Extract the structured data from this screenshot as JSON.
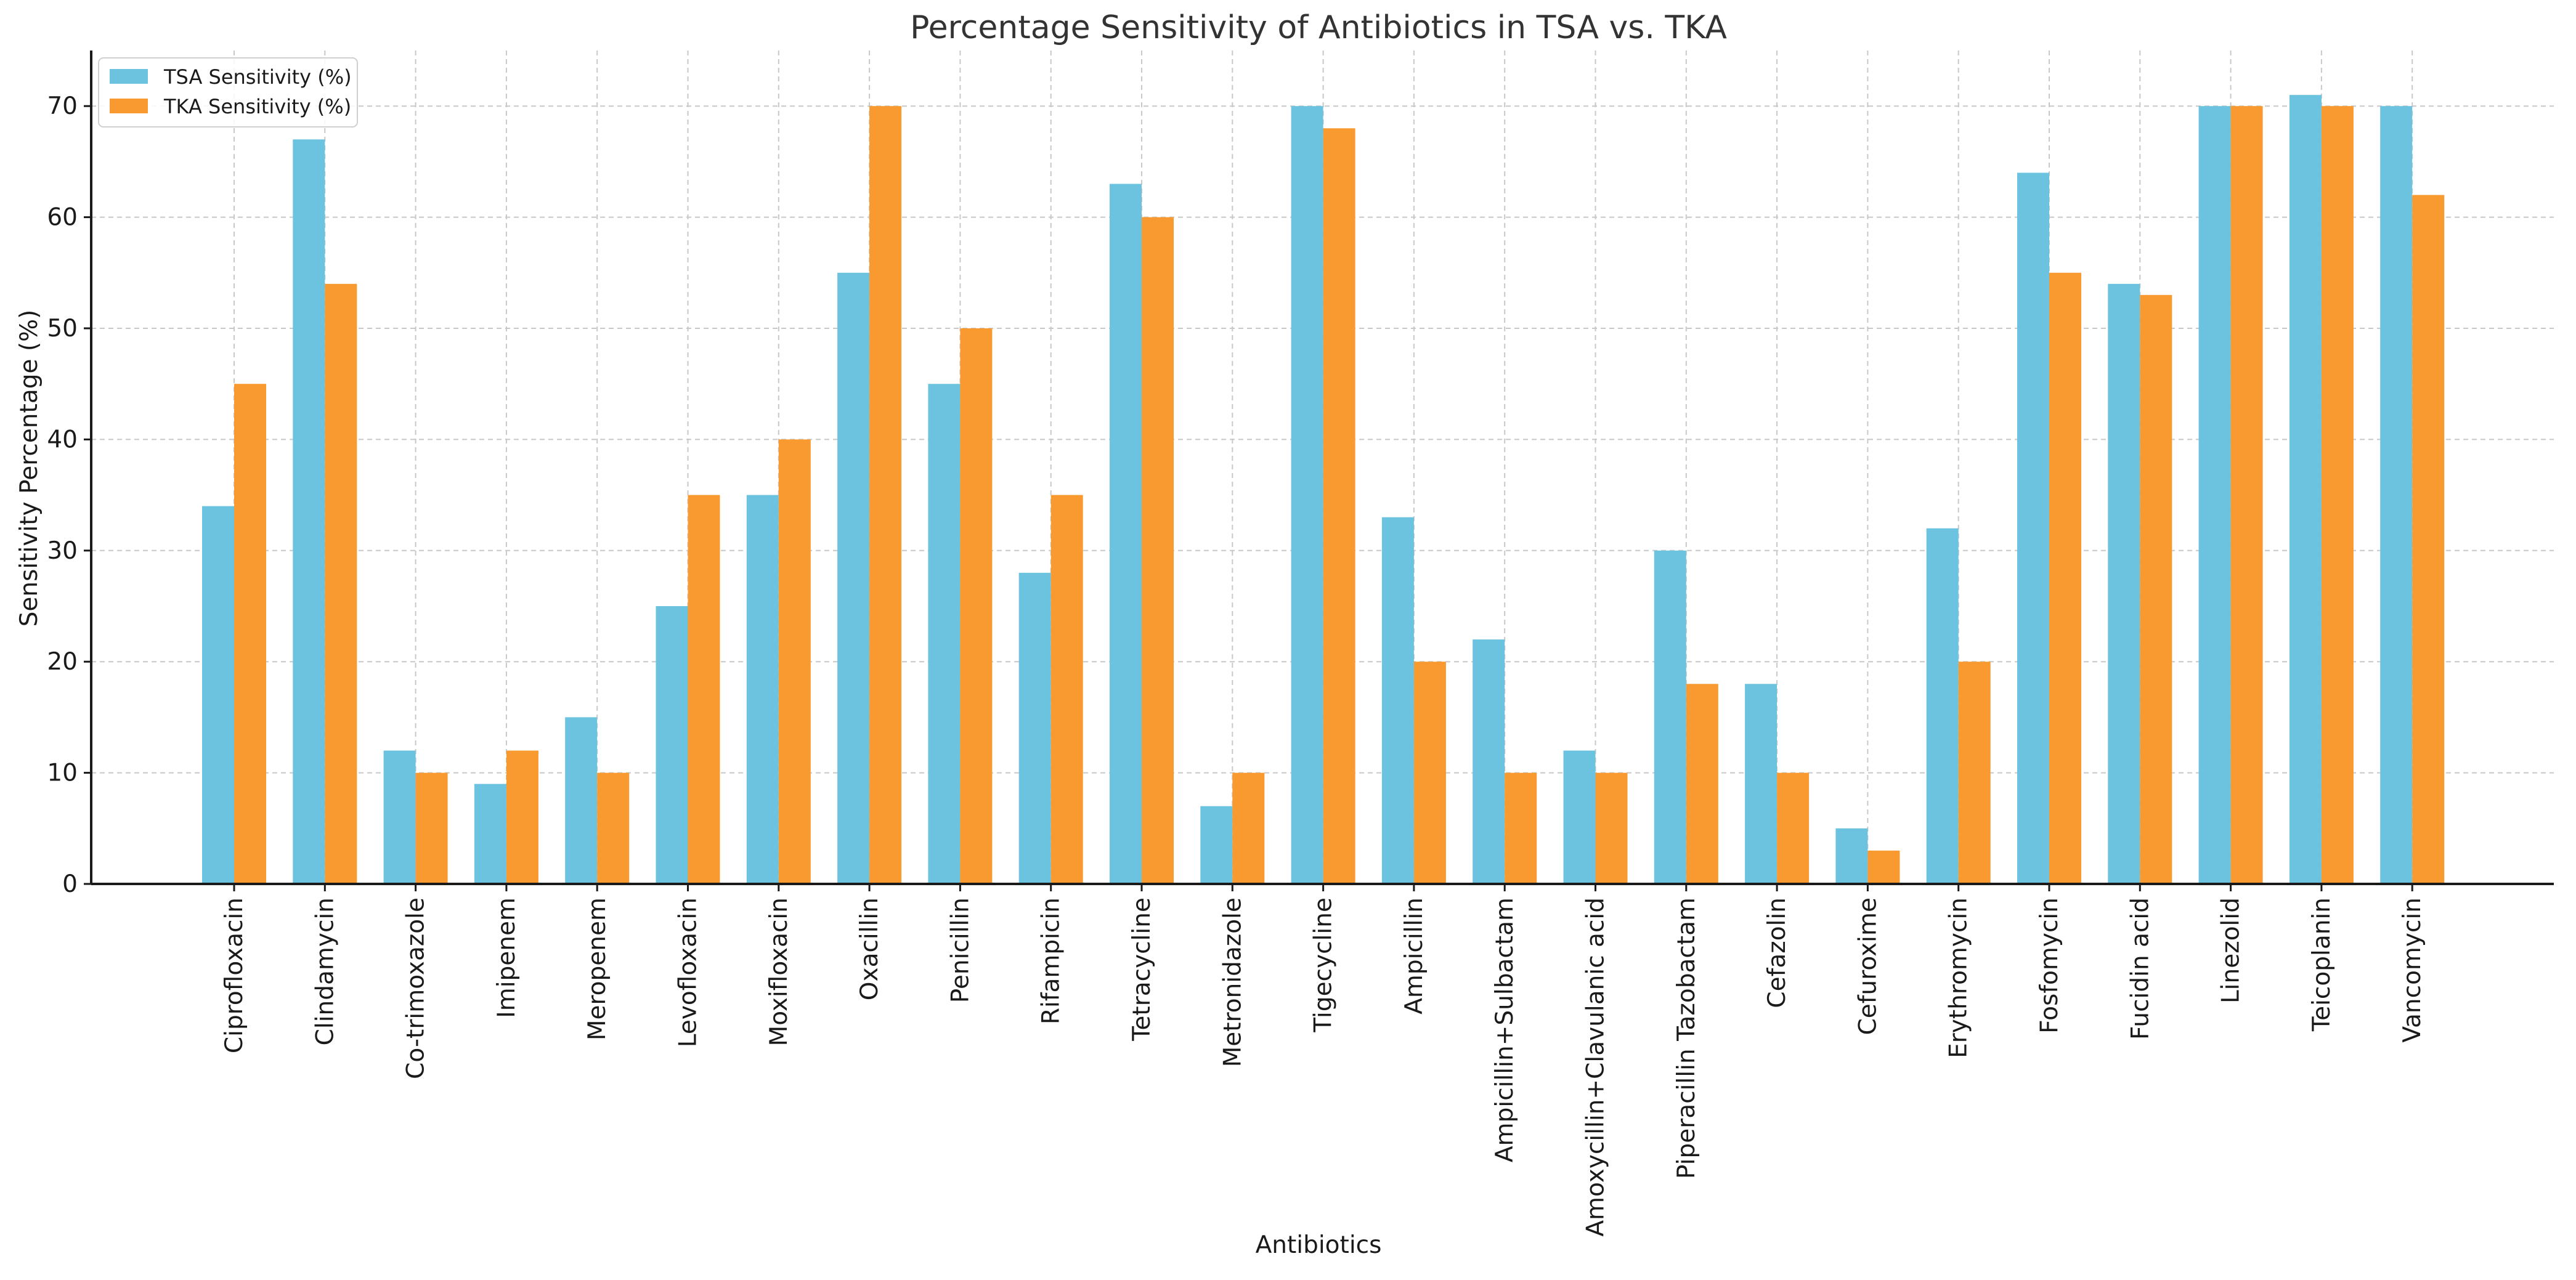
{
  "chart_data": {
    "type": "bar",
    "title": "Percentage Sensitivity of Antibiotics in TSA vs. TKA",
    "xlabel": "Antibiotics",
    "ylabel": "Sensitivity Percentage (%)",
    "ylim": [
      0,
      75
    ],
    "yticks": [
      0,
      10,
      20,
      30,
      40,
      50,
      60,
      70
    ],
    "grid": true,
    "legend_position": "top-left",
    "categories": [
      "Ciprofloxacin",
      "Clindamycin",
      "Co-trimoxazole",
      "Imipenem",
      "Meropenem",
      "Levofloxacin",
      "Moxifloxacin",
      "Oxacillin",
      "Penicillin",
      "Rifampicin",
      "Tetracycline",
      "Metronidazole",
      "Tigecycline",
      "Ampicillin",
      "Ampicillin+Sulbactam",
      "Amoxycillin+Clavulanic acid",
      "Piperacillin Tazobactam",
      "Cefazolin",
      "Cefuroxime",
      "Erythromycin",
      "Fosfomycin",
      "Fucidin acid",
      "Linezolid",
      "Teicoplanin",
      "Vancomycin"
    ],
    "series": [
      {
        "name": "TSA Sensitivity (%)",
        "color": "#6cc3e0",
        "values": [
          34,
          67,
          12,
          9,
          15,
          25,
          35,
          55,
          45,
          28,
          63,
          7,
          70,
          33,
          22,
          12,
          30,
          18,
          5,
          32,
          64,
          54,
          70,
          71,
          70
        ]
      },
      {
        "name": "TKA Sensitivity (%)",
        "color": "#f89a2f",
        "values": [
          45,
          54,
          10,
          12,
          10,
          35,
          40,
          70,
          50,
          35,
          60,
          10,
          68,
          20,
          10,
          10,
          18,
          10,
          3,
          20,
          55,
          53,
          70,
          70,
          62
        ]
      }
    ]
  }
}
